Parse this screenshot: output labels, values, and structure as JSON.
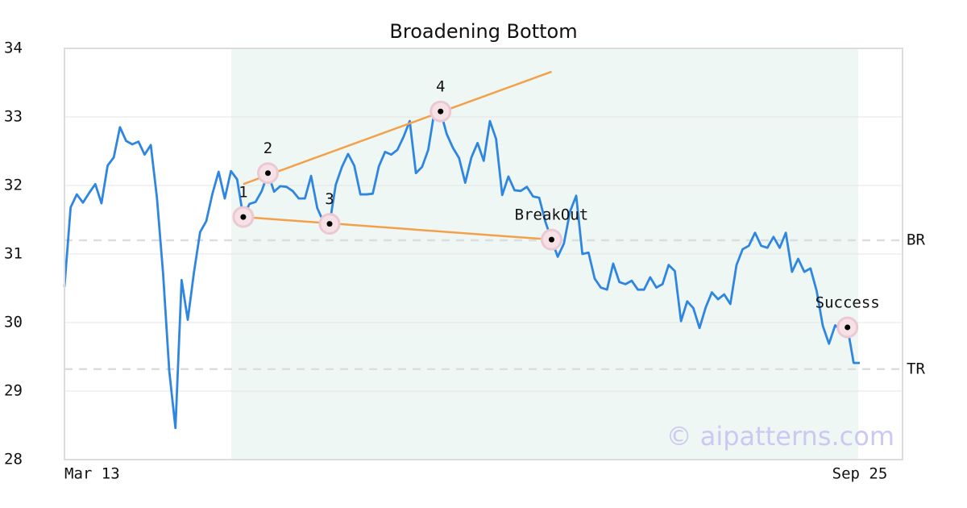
{
  "chart_data": {
    "type": "line",
    "title": "Broadening Bottom",
    "categories": [
      "Mar 13",
      null,
      null,
      null,
      null,
      null,
      null,
      null,
      null,
      null,
      null,
      null,
      null,
      null,
      null,
      null,
      null,
      null,
      null,
      null,
      null,
      null,
      null,
      null,
      null,
      null,
      null,
      null,
      null,
      null,
      null,
      null,
      null,
      null,
      null,
      null,
      null,
      null,
      null,
      null,
      null,
      null,
      null,
      null,
      null,
      null,
      null,
      null,
      null,
      null,
      null,
      null,
      null,
      null,
      null,
      null,
      null,
      null,
      null,
      null,
      null,
      null,
      null,
      null,
      null,
      null,
      null,
      null,
      null,
      null,
      null,
      null,
      null,
      null,
      null,
      null,
      null,
      null,
      null,
      null,
      null,
      null,
      null,
      null,
      null,
      null,
      null,
      null,
      null,
      null,
      null,
      null,
      null,
      null,
      null,
      null,
      null,
      null,
      null,
      null,
      null,
      null,
      null,
      null,
      null,
      null,
      null,
      null,
      null,
      null,
      null,
      null,
      null,
      null,
      null,
      null,
      null,
      null,
      null,
      null,
      null,
      null,
      null,
      null,
      null,
      null,
      null,
      null,
      null,
      "Sep 25"
    ],
    "series": [
      {
        "color": "#2f86e0",
        "values": [
          30.52,
          31.68,
          31.87,
          31.75,
          31.89,
          32.02,
          31.74,
          32.29,
          32.41,
          32.85,
          32.65,
          32.6,
          32.64,
          32.45,
          32.59,
          31.82,
          30.71,
          29.29,
          28.46,
          30.62,
          30.04,
          30.73,
          31.32,
          31.48,
          31.88,
          32.2,
          31.81,
          32.21,
          32.09,
          31.54,
          31.73,
          31.76,
          31.92,
          32.18,
          31.91,
          31.99,
          31.98,
          31.92,
          31.81,
          31.81,
          32.14,
          31.67,
          31.47,
          31.44,
          32.01,
          32.27,
          32.46,
          32.29,
          31.87,
          31.87,
          31.88,
          32.28,
          32.49,
          32.45,
          32.52,
          32.71,
          32.94,
          32.18,
          32.27,
          32.52,
          33.08,
          33.08,
          32.75,
          32.55,
          32.4,
          32.04,
          32.41,
          32.62,
          32.36,
          32.94,
          32.68,
          31.86,
          32.13,
          31.93,
          31.92,
          31.98,
          31.84,
          31.82,
          31.47,
          31.21,
          30.96,
          31.15,
          31.62,
          31.85,
          31.0,
          31.02,
          30.64,
          30.51,
          30.48,
          30.86,
          30.59,
          30.56,
          30.61,
          30.48,
          30.48,
          30.66,
          30.51,
          30.56,
          30.84,
          30.75,
          30.02,
          30.31,
          30.21,
          29.92,
          30.22,
          30.44,
          30.34,
          30.41,
          30.27,
          30.84,
          31.07,
          31.12,
          31.31,
          31.12,
          31.09,
          31.25,
          31.09,
          31.31,
          30.74,
          30.93,
          30.74,
          30.79,
          30.46,
          29.95,
          29.69,
          29.96,
          29.88,
          29.93,
          29.41,
          29.41
        ]
      }
    ],
    "ylim": [
      28,
      34
    ],
    "yticks": [
      28,
      29,
      30,
      31,
      32,
      33,
      34
    ],
    "grid": true,
    "annotations": [
      {
        "label": "1",
        "x": 29,
        "value": 31.54
      },
      {
        "label": "2",
        "x": 33,
        "value": 32.18
      },
      {
        "label": "3",
        "x": 43,
        "value": 31.44
      },
      {
        "label": "4",
        "x": 61,
        "value": 33.08
      },
      {
        "label": "BreakOut",
        "x": 79,
        "value": 31.21
      },
      {
        "label": "Success",
        "x": 127,
        "value": 29.93
      }
    ],
    "trend_lines": [
      {
        "color": "#f4a04a",
        "x": [
          29,
          79
        ],
        "values": [
          32.02,
          33.66
        ]
      },
      {
        "color": "#f4a04a",
        "x": [
          29,
          79
        ],
        "values": [
          31.54,
          31.21
        ]
      }
    ],
    "levels": [
      {
        "label": "BR",
        "value": 31.2
      },
      {
        "label": "TR",
        "value": 29.32
      }
    ],
    "watermark": "© aipatterns.com"
  }
}
